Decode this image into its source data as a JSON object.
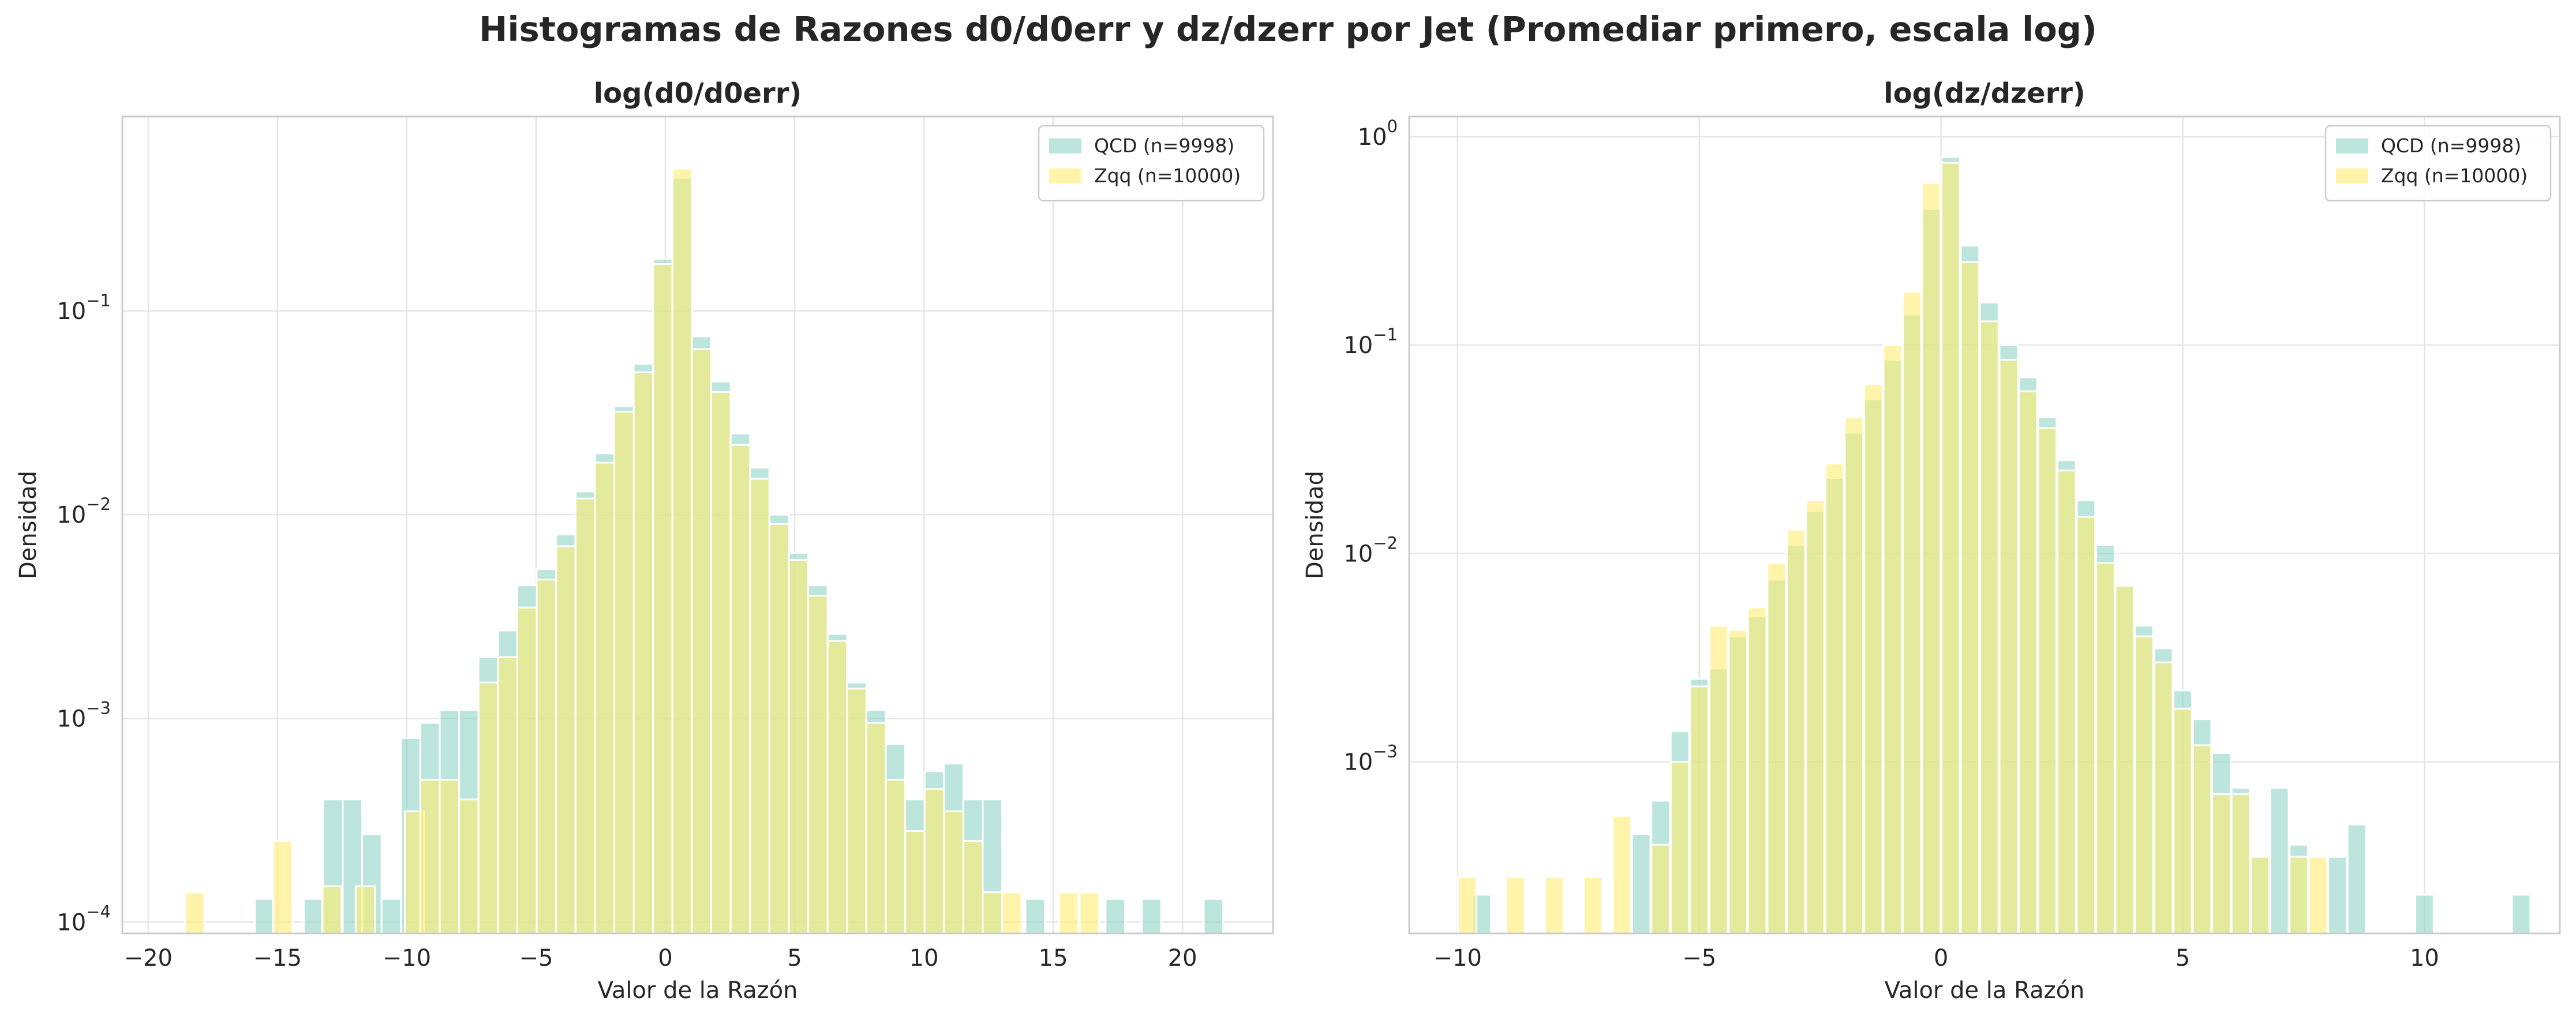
{
  "figure": {
    "suptitle": "Histogramas de Razones d0/d0err y dz/dzerr por Jet (Promediar primero, escala log)"
  },
  "colors": {
    "qcd": "#8dd3c7",
    "zqq": "#ffed6f",
    "grid": "#e6e6e6",
    "spine": "#cccccc",
    "text": "#262626"
  },
  "chart_data": [
    {
      "type": "bar",
      "subtype": "histogram",
      "title": "log(d0/d0err)",
      "xlabel": "Valor de la Razón",
      "ylabel": "Densidad",
      "yscale": "log",
      "xlim": [
        -21.0,
        23.5
      ],
      "ylim": [
        8.8e-05,
        0.9
      ],
      "xticks": [
        -20,
        -15,
        -10,
        -5,
        0,
        5,
        10,
        15,
        20
      ],
      "xtick_labels": [
        "−20",
        "−15",
        "−10",
        "−5",
        "0",
        "5",
        "10",
        "15",
        "20"
      ],
      "yticks": [
        0.0001,
        0.001,
        0.01,
        0.1
      ],
      "ytick_labels": [
        [
          "10",
          "−4"
        ],
        [
          "10",
          "−3"
        ],
        [
          "10",
          "−2"
        ],
        [
          "10",
          "−1"
        ]
      ],
      "grid": true,
      "legend_position": "upper right",
      "bin_width": 0.75,
      "series": [
        {
          "name": "QCD (n=9998)",
          "color": "#8dd3c7",
          "bins": [
            {
              "x": -15.5,
              "y": 0.00013
            },
            {
              "x": -13.6,
              "y": 0.00013
            },
            {
              "x": -12.85,
              "y": 0.0004
            },
            {
              "x": -12.1,
              "y": 0.0004
            },
            {
              "x": -11.35,
              "y": 0.00027
            },
            {
              "x": -10.6,
              "y": 0.00013
            },
            {
              "x": -9.85,
              "y": 0.0008
            },
            {
              "x": -9.1,
              "y": 0.00095
            },
            {
              "x": -8.35,
              "y": 0.0011
            },
            {
              "x": -7.6,
              "y": 0.0011
            },
            {
              "x": -6.85,
              "y": 0.002
            },
            {
              "x": -6.1,
              "y": 0.0027
            },
            {
              "x": -5.35,
              "y": 0.0045
            },
            {
              "x": -4.6,
              "y": 0.0054
            },
            {
              "x": -3.85,
              "y": 0.008
            },
            {
              "x": -3.1,
              "y": 0.013
            },
            {
              "x": -2.35,
              "y": 0.02
            },
            {
              "x": -1.6,
              "y": 0.034
            },
            {
              "x": -0.85,
              "y": 0.055
            },
            {
              "x": -0.1,
              "y": 0.18
            },
            {
              "x": 0.65,
              "y": 0.45
            },
            {
              "x": 1.4,
              "y": 0.075
            },
            {
              "x": 2.15,
              "y": 0.045
            },
            {
              "x": 2.9,
              "y": 0.025
            },
            {
              "x": 3.65,
              "y": 0.017
            },
            {
              "x": 4.4,
              "y": 0.01
            },
            {
              "x": 5.15,
              "y": 0.0065
            },
            {
              "x": 5.9,
              "y": 0.0045
            },
            {
              "x": 6.65,
              "y": 0.0026
            },
            {
              "x": 7.4,
              "y": 0.0015
            },
            {
              "x": 8.15,
              "y": 0.0011
            },
            {
              "x": 8.9,
              "y": 0.00075
            },
            {
              "x": 9.65,
              "y": 0.0004
            },
            {
              "x": 10.4,
              "y": 0.00055
            },
            {
              "x": 11.15,
              "y": 0.0006
            },
            {
              "x": 11.9,
              "y": 0.0004
            },
            {
              "x": 12.65,
              "y": 0.0004
            },
            {
              "x": 14.3,
              "y": 0.00013
            },
            {
              "x": 17.4,
              "y": 0.00013
            },
            {
              "x": 18.8,
              "y": 0.00013
            },
            {
              "x": 21.2,
              "y": 0.00013
            }
          ]
        },
        {
          "name": "Zqq (n=10000)",
          "color": "#ffed6f",
          "bins": [
            {
              "x": -18.2,
              "y": 0.00014
            },
            {
              "x": -14.8,
              "y": 0.00025
            },
            {
              "x": -12.9,
              "y": 0.00015
            },
            {
              "x": -11.6,
              "y": 0.00015
            },
            {
              "x": -9.7,
              "y": 0.00035
            },
            {
              "x": -9.1,
              "y": 0.0005
            },
            {
              "x": -8.35,
              "y": 0.0005
            },
            {
              "x": -7.6,
              "y": 0.0004
            },
            {
              "x": -6.85,
              "y": 0.0015
            },
            {
              "x": -6.1,
              "y": 0.002
            },
            {
              "x": -5.35,
              "y": 0.0035
            },
            {
              "x": -4.6,
              "y": 0.0048
            },
            {
              "x": -3.85,
              "y": 0.007
            },
            {
              "x": -3.1,
              "y": 0.012
            },
            {
              "x": -2.35,
              "y": 0.018
            },
            {
              "x": -1.6,
              "y": 0.032
            },
            {
              "x": -0.85,
              "y": 0.05
            },
            {
              "x": -0.1,
              "y": 0.17
            },
            {
              "x": 0.65,
              "y": 0.5
            },
            {
              "x": 1.4,
              "y": 0.065
            },
            {
              "x": 2.15,
              "y": 0.04
            },
            {
              "x": 2.9,
              "y": 0.022
            },
            {
              "x": 3.65,
              "y": 0.015
            },
            {
              "x": 4.4,
              "y": 0.009
            },
            {
              "x": 5.15,
              "y": 0.006
            },
            {
              "x": 5.9,
              "y": 0.004
            },
            {
              "x": 6.65,
              "y": 0.0024
            },
            {
              "x": 7.4,
              "y": 0.0014
            },
            {
              "x": 8.15,
              "y": 0.00095
            },
            {
              "x": 8.9,
              "y": 0.0005
            },
            {
              "x": 9.65,
              "y": 0.00028
            },
            {
              "x": 10.4,
              "y": 0.00045
            },
            {
              "x": 11.15,
              "y": 0.00035
            },
            {
              "x": 11.9,
              "y": 0.00025
            },
            {
              "x": 12.65,
              "y": 0.00014
            },
            {
              "x": 13.4,
              "y": 0.00014
            },
            {
              "x": 15.6,
              "y": 0.00014
            },
            {
              "x": 16.4,
              "y": 0.00014
            }
          ]
        }
      ]
    },
    {
      "type": "bar",
      "subtype": "histogram",
      "title": "log(dz/dzerr)",
      "xlabel": "Valor de la Razón",
      "ylabel": "Densidad",
      "yscale": "log",
      "xlim": [
        -11.0,
        12.8
      ],
      "ylim": [
        0.00015,
        1.25
      ],
      "xticks": [
        -10,
        -5,
        0,
        5,
        10
      ],
      "xtick_labels": [
        "−10",
        "−5",
        "0",
        "5",
        "10"
      ],
      "yticks": [
        0.001,
        0.01,
        0.1,
        1
      ],
      "ytick_labels": [
        [
          "10",
          "−3"
        ],
        [
          "10",
          "−2"
        ],
        [
          "10",
          "−1"
        ],
        [
          "10",
          "0"
        ]
      ],
      "grid": true,
      "legend_position": "upper right",
      "bin_width": 0.38,
      "series": [
        {
          "name": "QCD (n=9998)",
          "color": "#8dd3c7",
          "bins": [
            {
              "x": -9.5,
              "y": 0.00023
            },
            {
              "x": -6.2,
              "y": 0.00045
            },
            {
              "x": -5.8,
              "y": 0.00065
            },
            {
              "x": -5.4,
              "y": 0.0014
            },
            {
              "x": -5.0,
              "y": 0.0025
            },
            {
              "x": -4.6,
              "y": 0.0028
            },
            {
              "x": -4.2,
              "y": 0.004
            },
            {
              "x": -3.8,
              "y": 0.005
            },
            {
              "x": -3.4,
              "y": 0.0075
            },
            {
              "x": -3.0,
              "y": 0.011
            },
            {
              "x": -2.6,
              "y": 0.016
            },
            {
              "x": -2.2,
              "y": 0.023
            },
            {
              "x": -1.8,
              "y": 0.038
            },
            {
              "x": -1.4,
              "y": 0.055
            },
            {
              "x": -1.0,
              "y": 0.085
            },
            {
              "x": -0.6,
              "y": 0.14
            },
            {
              "x": -0.2,
              "y": 0.45
            },
            {
              "x": 0.2,
              "y": 0.8
            },
            {
              "x": 0.6,
              "y": 0.3
            },
            {
              "x": 1.0,
              "y": 0.16
            },
            {
              "x": 1.4,
              "y": 0.1
            },
            {
              "x": 1.8,
              "y": 0.07
            },
            {
              "x": 2.2,
              "y": 0.045
            },
            {
              "x": 2.6,
              "y": 0.028
            },
            {
              "x": 3.0,
              "y": 0.018
            },
            {
              "x": 3.4,
              "y": 0.011
            },
            {
              "x": 3.8,
              "y": 0.007
            },
            {
              "x": 4.2,
              "y": 0.0045
            },
            {
              "x": 4.6,
              "y": 0.0035
            },
            {
              "x": 5.0,
              "y": 0.0022
            },
            {
              "x": 5.4,
              "y": 0.0016
            },
            {
              "x": 5.8,
              "y": 0.0011
            },
            {
              "x": 6.2,
              "y": 0.00075
            },
            {
              "x": 6.6,
              "y": 0.00035
            },
            {
              "x": 7.0,
              "y": 0.00075
            },
            {
              "x": 7.4,
              "y": 0.0004
            },
            {
              "x": 8.2,
              "y": 0.00035
            },
            {
              "x": 8.6,
              "y": 0.0005
            },
            {
              "x": 10.0,
              "y": 0.00023
            },
            {
              "x": 12.0,
              "y": 0.00023
            }
          ]
        },
        {
          "name": "Zqq (n=10000)",
          "color": "#ffed6f",
          "bins": [
            {
              "x": -9.8,
              "y": 0.00028
            },
            {
              "x": -8.8,
              "y": 0.00028
            },
            {
              "x": -8.0,
              "y": 0.00028
            },
            {
              "x": -7.2,
              "y": 0.00028
            },
            {
              "x": -6.6,
              "y": 0.00055
            },
            {
              "x": -5.8,
              "y": 0.0004
            },
            {
              "x": -5.4,
              "y": 0.001
            },
            {
              "x": -5.0,
              "y": 0.0023
            },
            {
              "x": -4.6,
              "y": 0.0045
            },
            {
              "x": -4.2,
              "y": 0.0043
            },
            {
              "x": -3.8,
              "y": 0.0055
            },
            {
              "x": -3.4,
              "y": 0.009
            },
            {
              "x": -3.0,
              "y": 0.013
            },
            {
              "x": -2.6,
              "y": 0.018
            },
            {
              "x": -2.2,
              "y": 0.027
            },
            {
              "x": -1.8,
              "y": 0.045
            },
            {
              "x": -1.4,
              "y": 0.065
            },
            {
              "x": -1.0,
              "y": 0.1
            },
            {
              "x": -0.6,
              "y": 0.18
            },
            {
              "x": -0.2,
              "y": 0.6
            },
            {
              "x": 0.2,
              "y": 0.75
            },
            {
              "x": 0.6,
              "y": 0.25
            },
            {
              "x": 1.0,
              "y": 0.13
            },
            {
              "x": 1.4,
              "y": 0.085
            },
            {
              "x": 1.8,
              "y": 0.06
            },
            {
              "x": 2.2,
              "y": 0.04
            },
            {
              "x": 2.6,
              "y": 0.025
            },
            {
              "x": 3.0,
              "y": 0.015
            },
            {
              "x": 3.4,
              "y": 0.009
            },
            {
              "x": 3.8,
              "y": 0.007
            },
            {
              "x": 4.2,
              "y": 0.004
            },
            {
              "x": 4.6,
              "y": 0.003
            },
            {
              "x": 5.0,
              "y": 0.0018
            },
            {
              "x": 5.4,
              "y": 0.0012
            },
            {
              "x": 5.8,
              "y": 0.0007
            },
            {
              "x": 6.2,
              "y": 0.0007
            },
            {
              "x": 6.6,
              "y": 0.00035
            },
            {
              "x": 7.4,
              "y": 0.00035
            },
            {
              "x": 7.8,
              "y": 0.00035
            }
          ]
        }
      ]
    }
  ]
}
